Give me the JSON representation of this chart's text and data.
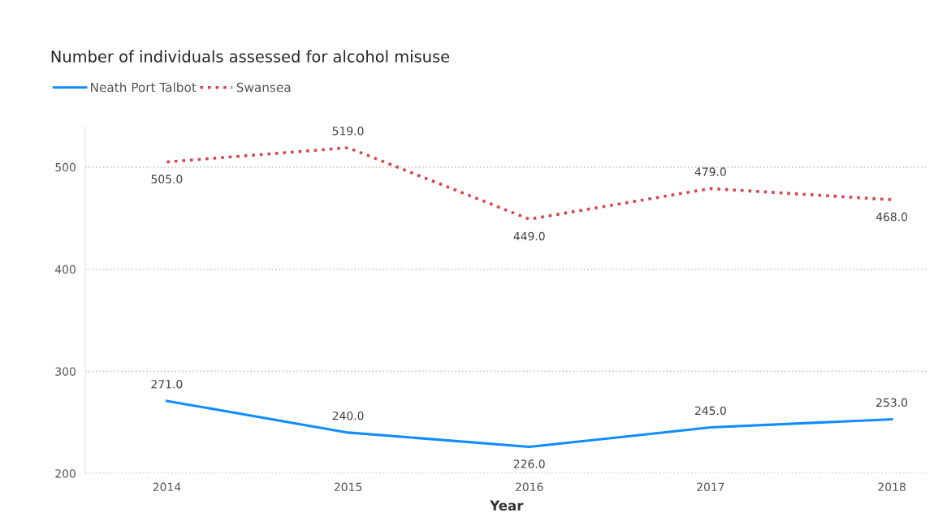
{
  "chart_data": {
    "type": "line",
    "title": "Number of individuals assessed for alcohol misuse",
    "xlabel": "Year",
    "categories": [
      "2014",
      "2015",
      "2016",
      "2017",
      "2018"
    ],
    "series": [
      {
        "name": "Neath Port Talbot",
        "color": "#118dff",
        "values": [
          271,
          240,
          226,
          245,
          253
        ],
        "line_style": "solid",
        "value_labels": [
          "271.0",
          "240.0",
          "226.0",
          "245.0",
          "253.0"
        ]
      },
      {
        "name": "Swansea",
        "color": "#d64550",
        "values": [
          505,
          519,
          449,
          479,
          468
        ],
        "line_style": "dotted",
        "value_labels": [
          "505.0",
          "519.0",
          "449.0",
          "479.0",
          "468.0"
        ]
      }
    ],
    "ylim": [
      200,
      540
    ],
    "yticks": [
      200,
      300,
      400,
      500
    ],
    "grid": "y",
    "legend": "top left",
    "marker": "none"
  }
}
